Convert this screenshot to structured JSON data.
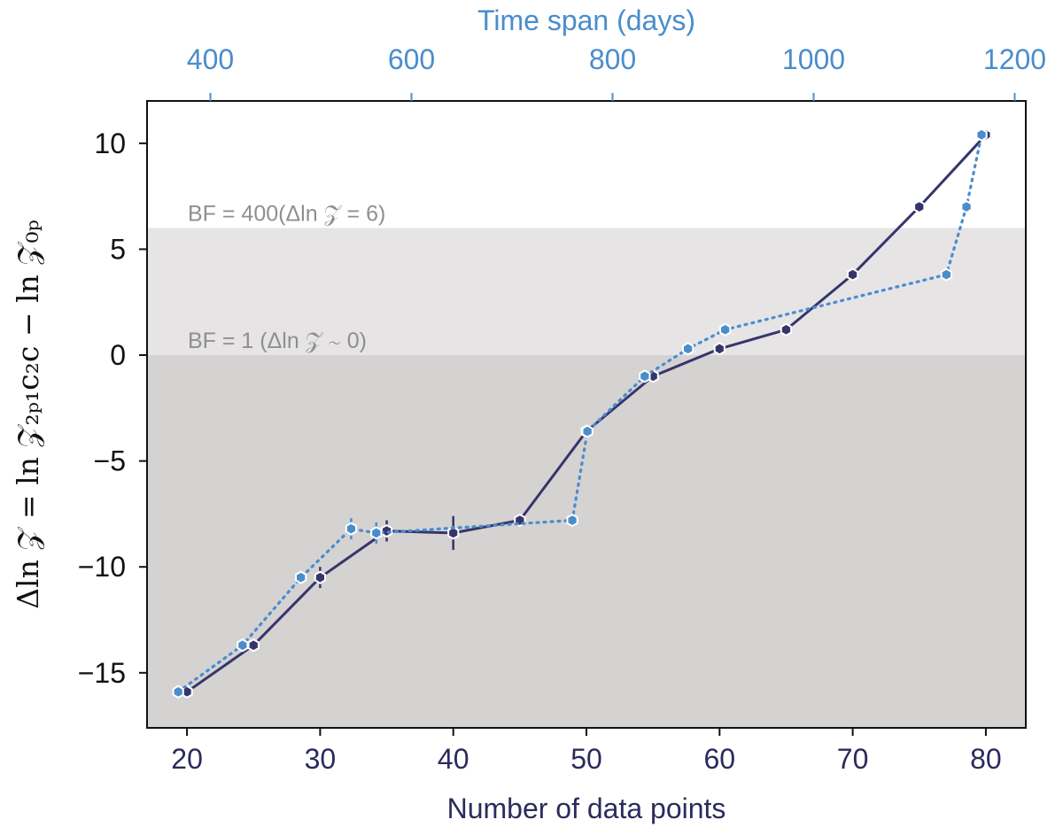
{
  "chart_data": {
    "type": "line",
    "xlabel": "Number of data points",
    "x2label": "Time span (days)",
    "ylabel": "Δln 𝒵 = ln 𝒵₂ₚ₁c₂c − ln 𝒵₀ₚ",
    "xlim": [
      17,
      83
    ],
    "ylim": [
      -17.6,
      12
    ],
    "x2lim": [
      337,
      1211
    ],
    "xticks": [
      20,
      30,
      40,
      50,
      60,
      70,
      80
    ],
    "yticks": [
      -15,
      -10,
      -5,
      0,
      5,
      10
    ],
    "yticklabels": [
      "−15",
      "−10",
      "−5",
      "0",
      "5",
      "10"
    ],
    "x2ticks": [
      400,
      600,
      800,
      1000,
      1200
    ],
    "grid": false,
    "bands": [
      {
        "from": -17.6,
        "to": 0,
        "color": "#d5d2d2"
      },
      {
        "from": 0,
        "to": 6,
        "color": "#e6e4e5"
      }
    ],
    "annotations": [
      {
        "text": "BF = 400(Δln 𝒵 = 6)",
        "y": 6
      },
      {
        "text": "BF = 1  (Δln 𝒵 ∼ 0)",
        "y": 0
      }
    ],
    "series": [
      {
        "axis": "bottom",
        "style": "solid",
        "color": "#36356b",
        "x": [
          20,
          25,
          30,
          35,
          40,
          45,
          50,
          55,
          60,
          65,
          70,
          75,
          80
        ],
        "y": [
          -15.9,
          -13.7,
          -10.5,
          -8.3,
          -8.4,
          -7.8,
          -3.6,
          -1.0,
          0.3,
          1.2,
          3.8,
          7.0,
          10.4
        ],
        "err": [
          0.2,
          0.2,
          0.5,
          0.5,
          0.8,
          0.2,
          0.2,
          0.1,
          0.1,
          0.1,
          0.1,
          0.1,
          0.1
        ]
      },
      {
        "axis": "top",
        "style": "dotted",
        "color": "#4a8dcc",
        "x": [
          368,
          432,
          490,
          540,
          565,
          760,
          775,
          832,
          875,
          912,
          1132,
          1152,
          1167
        ],
        "y": [
          -15.9,
          -13.7,
          -10.5,
          -8.2,
          -8.4,
          -7.8,
          -3.6,
          -1.0,
          0.3,
          1.2,
          3.8,
          7.0,
          10.4
        ],
        "err": [
          0.2,
          0.2,
          0.3,
          0.5,
          0.5,
          0.2,
          0.2,
          0.1,
          0.1,
          0.1,
          0.1,
          0.1,
          0.1
        ]
      }
    ]
  }
}
